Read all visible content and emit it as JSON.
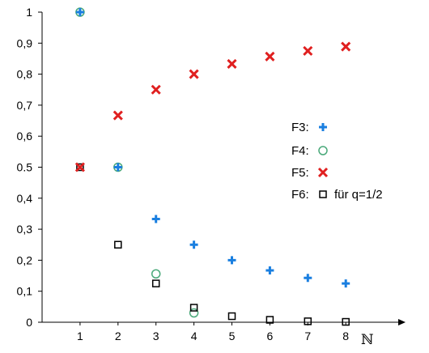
{
  "chart_data": {
    "type": "scatter",
    "title": "",
    "xlabel": "",
    "ylabel": "",
    "x_unit_label": "ℕ",
    "xlim": [
      0,
      8
    ],
    "ylim": [
      0,
      1
    ],
    "x_ticks": [
      1,
      2,
      3,
      4,
      5,
      6,
      7,
      8
    ],
    "x_tick_labels": [
      "1",
      "2",
      "3",
      "4",
      "5",
      "6",
      "7",
      "8"
    ],
    "y_ticks": [
      0,
      0.1,
      0.2,
      0.3,
      0.4,
      0.5,
      0.6,
      0.7,
      0.8,
      0.9,
      1
    ],
    "y_tick_labels": [
      "0",
      "0,1",
      "0,2",
      "0,3",
      "0,4",
      "0.5",
      "0,6",
      "0,7",
      "0,8",
      "0,9",
      "1"
    ],
    "grid": false,
    "legend_position": "right",
    "series": [
      {
        "name": "F3:",
        "marker": "plus",
        "color": "#1a7fe0",
        "x": [
          1,
          2,
          3,
          4,
          5,
          6,
          7,
          8
        ],
        "y": [
          1,
          0.5,
          0.333,
          0.25,
          0.2,
          0.167,
          0.143,
          0.125
        ]
      },
      {
        "name": "F4:",
        "marker": "circle",
        "color": "#4aa97a",
        "x": [
          1,
          2,
          3,
          4
        ],
        "y": [
          1,
          0.5,
          0.156,
          0.03
        ]
      },
      {
        "name": "F5:",
        "marker": "cross",
        "color": "#e02020",
        "x": [
          1,
          2,
          3,
          4,
          5,
          6,
          7,
          8
        ],
        "y": [
          0.5,
          0.667,
          0.75,
          0.8,
          0.833,
          0.857,
          0.875,
          0.889
        ]
      },
      {
        "name": "F6:",
        "note": "für q=1/2",
        "marker": "square",
        "color": "#000000",
        "x": [
          1,
          2,
          3,
          4,
          5,
          6,
          7,
          8
        ],
        "y": [
          0.5,
          0.25,
          0.125,
          0.0469,
          0.0195,
          0.0078,
          0.003,
          0.0012
        ]
      }
    ]
  }
}
